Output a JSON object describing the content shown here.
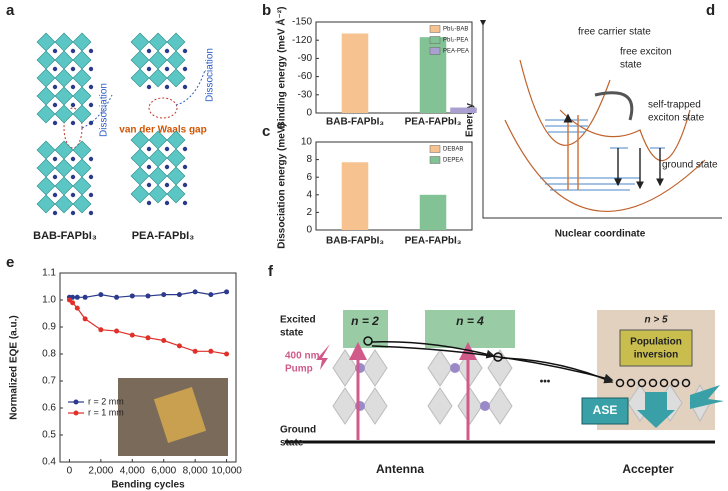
{
  "panel_letters": [
    "a",
    "b",
    "c",
    "d",
    "e",
    "f"
  ],
  "diagram_a": {
    "labels": [
      "Dissociation",
      "Dissociation",
      "van der Waals gap",
      "BAB-FAPbI₃",
      "PEA-FAPbI₃"
    ]
  },
  "diagram_d": {
    "labels": [
      "free carrier state",
      "free exciton",
      "state",
      "self-trapped",
      "exciton state",
      "ground state",
      "Energy",
      "Nuclear coordinate"
    ]
  },
  "diagram_f": {
    "labels": [
      "Excited",
      "state",
      "Ground",
      "state",
      "n = 2",
      "n = 4",
      "n > 5",
      "Population",
      "inversion",
      "400 nm",
      "Pump",
      "ASE",
      "Antenna",
      "Accepter",
      "•••"
    ]
  },
  "chart_data": [
    {
      "type": "bar",
      "ylabel": "Binding energy (meV Å⁻²)",
      "categories": [
        "BAB-FAPbI₃",
        "PEA-FAPbI₃"
      ],
      "series": [
        {
          "name": "PbI₂-BAB",
          "color": "#f6c28f",
          "values": [
            -131,
            null
          ]
        },
        {
          "name": "PbI₂-PEA",
          "color": "#82c294",
          "values": [
            null,
            -125
          ]
        },
        {
          "name": "PEA-PEA",
          "color": "#a99fd0",
          "values": [
            null,
            -9
          ]
        }
      ],
      "ylim": [
        0,
        -150
      ],
      "yticks": [
        0,
        -30,
        -60,
        -90,
        -120,
        -150
      ],
      "legend": "upper right"
    },
    {
      "type": "bar",
      "ylabel": "Dissociation energy (meV)",
      "categories": [
        "BAB-FAPbI₃",
        "PEA-FAPbI₃"
      ],
      "series": [
        {
          "name": "DEBAB",
          "color": "#f6c28f",
          "values": [
            7.7,
            null
          ]
        },
        {
          "name": "DEPEA",
          "color": "#82c294",
          "values": [
            null,
            4.0
          ]
        }
      ],
      "ylim": [
        0,
        10
      ],
      "yticks": [
        0,
        2,
        4,
        6,
        8,
        10
      ],
      "legend": "upper right"
    },
    {
      "type": "line",
      "xlabel": "Bending cycles",
      "ylabel": "Normalized EQE (a.u.)",
      "x": [
        0,
        200,
        500,
        1000,
        2000,
        3000,
        4000,
        5000,
        6000,
        7000,
        8000,
        9000,
        10000
      ],
      "series": [
        {
          "name": "r = 2 mm",
          "color": "#2b3a8c",
          "values": [
            1.01,
            1.01,
            1.01,
            1.01,
            1.02,
            1.01,
            1.015,
            1.015,
            1.02,
            1.02,
            1.03,
            1.02,
            1.03
          ]
        },
        {
          "name": "r = 1 mm",
          "color": "#e0302a",
          "values": [
            1.0,
            0.99,
            0.97,
            0.93,
            0.89,
            0.885,
            0.87,
            0.86,
            0.85,
            0.83,
            0.81,
            0.81,
            0.8
          ]
        }
      ],
      "xlim": [
        -600,
        10600
      ],
      "xticks": [
        0,
        {
          "value": 2000,
          "label": "2,000"
        },
        {
          "value": 4000,
          "label": "4,000"
        },
        {
          "value": 6000,
          "label": "6,000"
        },
        {
          "value": 8000,
          "label": "8,000"
        },
        {
          "value": 10000,
          "label": "10,000"
        }
      ],
      "ylim": [
        0.4,
        1.1
      ],
      "yticks": [
        0.4,
        0.5,
        0.6,
        0.7,
        0.8,
        0.9,
        {
          "value": 1.0,
          "label": "1.0"
        },
        1.1
      ],
      "legend": "lower left"
    }
  ]
}
